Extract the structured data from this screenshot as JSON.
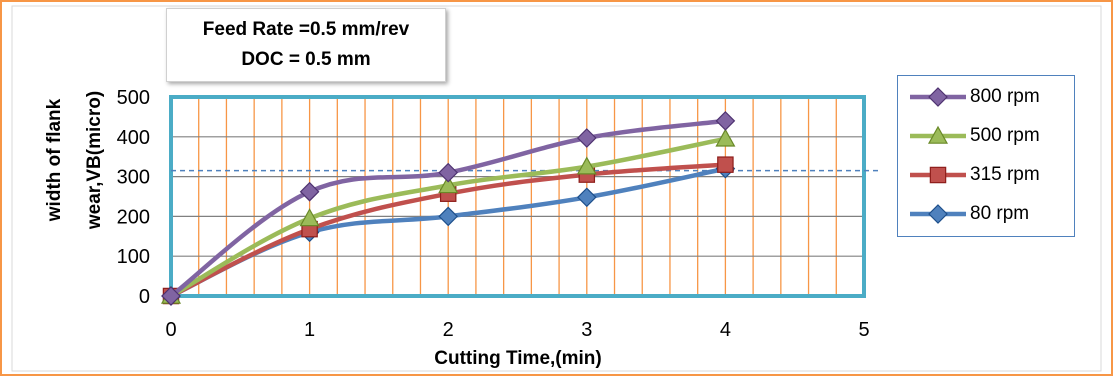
{
  "annotation": {
    "line1": "Feed Rate =0.5 mm/rev",
    "line2": "DOC = 0.5 mm"
  },
  "chart_data": {
    "type": "line",
    "xlabel": "Cutting Time,(min)",
    "ylabel_line1": "width of flank",
    "ylabel_line2": "wear,VB(micro)",
    "xlim": [
      0,
      5
    ],
    "ylim": [
      0,
      500
    ],
    "x_ticks": [
      0,
      1,
      2,
      3,
      4,
      5
    ],
    "y_ticks": [
      0,
      100,
      200,
      300,
      400,
      500
    ],
    "grid": "vertical minor and horizontal major",
    "legend_position": "right",
    "reference_line_y": 315,
    "series": [
      {
        "name": "800 rpm",
        "x": [
          0,
          1,
          2,
          3,
          4
        ],
        "y": [
          0,
          262,
          310,
          397,
          440
        ],
        "color": "#8064a2",
        "marker": "diamond"
      },
      {
        "name": "500 rpm",
        "x": [
          0,
          1,
          2,
          3,
          4
        ],
        "y": [
          0,
          195,
          278,
          325,
          395
        ],
        "color": "#9bbb59",
        "marker": "triangle"
      },
      {
        "name": "315 rpm",
        "x": [
          0,
          1,
          2,
          3,
          4
        ],
        "y": [
          0,
          168,
          257,
          305,
          330
        ],
        "color": "#c0504d",
        "marker": "square"
      },
      {
        "name": "80 rpm",
        "x": [
          0,
          1,
          2,
          3,
          4
        ],
        "y": [
          0,
          160,
          200,
          248,
          320
        ],
        "color": "#4f81bd",
        "marker": "diamond"
      }
    ],
    "colors": {
      "plot_border": "#4bacc6",
      "vertical_grid": "#f79646",
      "horizontal_grid": "#808080",
      "reference_line": "#4f81bd",
      "frame": "#f79646"
    }
  }
}
